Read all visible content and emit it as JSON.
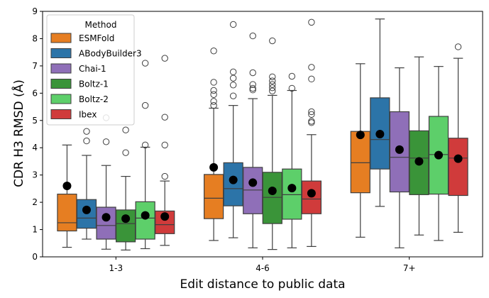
{
  "chart_data": {
    "type": "box",
    "xlabel": "Edit distance to public data",
    "ylabel": "CDR H3 RMSD (Å)",
    "ylim": [
      0,
      9
    ],
    "yticks": [
      "0",
      "1",
      "2",
      "3",
      "4",
      "5",
      "6",
      "7",
      "8",
      "9"
    ],
    "categories": [
      "1-3",
      "4-6",
      "7+"
    ],
    "legend": {
      "title": "Method",
      "placement": "upper-left"
    },
    "series": [
      {
        "name": "ESMFold",
        "color": "#e67e22",
        "boxes": [
          {
            "whislo": 0.35,
            "q1": 0.95,
            "med": 1.25,
            "q3": 2.3,
            "whishi": 4.1,
            "mean": 2.6,
            "fliers": []
          },
          {
            "whislo": 0.6,
            "q1": 1.4,
            "med": 2.15,
            "q3": 3.02,
            "whishi": 5.45,
            "mean": 3.28,
            "fliers": [
              5.55,
              5.7,
              5.95,
              6.1,
              6.4,
              7.55
            ]
          },
          {
            "whislo": 0.72,
            "q1": 2.35,
            "med": 3.45,
            "q3": 4.6,
            "whishi": 7.08,
            "mean": 4.47,
            "fliers": []
          }
        ]
      },
      {
        "name": "ABodyBuilder3",
        "color": "#2c74a8",
        "boxes": [
          {
            "whislo": 0.65,
            "q1": 1.05,
            "med": 1.42,
            "q3": 2.1,
            "whishi": 3.72,
            "mean": 1.72,
            "fliers": [
              4.25,
              4.6
            ]
          },
          {
            "whislo": 0.7,
            "q1": 1.87,
            "med": 2.5,
            "q3": 3.45,
            "whishi": 5.55,
            "mean": 2.82,
            "fliers": [
              5.9,
              6.3,
              6.55,
              6.78,
              8.52
            ]
          },
          {
            "whislo": 1.85,
            "q1": 3.22,
            "med": 4.3,
            "q3": 5.83,
            "whishi": 8.72,
            "mean": 4.5,
            "fliers": []
          }
        ]
      },
      {
        "name": "Chai-1",
        "color": "#8f6fb8",
        "boxes": [
          {
            "whislo": 0.28,
            "q1": 0.65,
            "med": 1.15,
            "q3": 1.82,
            "whishi": 3.35,
            "mean": 1.45,
            "fliers": [
              4.22,
              5.1
            ]
          },
          {
            "whislo": 0.33,
            "q1": 1.58,
            "med": 2.45,
            "q3": 3.28,
            "whishi": 5.8,
            "mean": 2.72,
            "fliers": [
              6.12,
              6.18,
              6.32,
              6.75,
              8.1
            ]
          },
          {
            "whislo": 0.33,
            "q1": 2.38,
            "med": 3.65,
            "q3": 5.32,
            "whishi": 6.93,
            "mean": 3.93,
            "fliers": []
          }
        ]
      },
      {
        "name": "Boltz-1",
        "color": "#3a9439",
        "boxes": [
          {
            "whislo": 0.25,
            "q1": 0.55,
            "med": 1.22,
            "q3": 1.72,
            "whishi": 2.95,
            "mean": 1.4,
            "fliers": [
              3.82,
              4.65
            ]
          },
          {
            "whislo": 0.27,
            "q1": 1.22,
            "med": 2.18,
            "q3": 3.1,
            "whishi": 5.92,
            "mean": 2.42,
            "fliers": [
              6.08,
              6.2,
              6.32,
              6.45,
              6.6,
              7.92
            ]
          },
          {
            "whislo": 0.8,
            "q1": 2.28,
            "med": 3.62,
            "q3": 4.62,
            "whishi": 7.33,
            "mean": 3.5,
            "fliers": []
          }
        ]
      },
      {
        "name": "Boltz-2",
        "color": "#5dcf6a",
        "boxes": [
          {
            "whislo": 0.3,
            "q1": 0.65,
            "med": 1.42,
            "q3": 2.02,
            "whishi": 4.02,
            "mean": 1.52,
            "fliers": [
              4.1,
              5.55,
              7.1
            ]
          },
          {
            "whislo": 0.33,
            "q1": 1.38,
            "med": 2.28,
            "q3": 3.22,
            "whishi": 6.1,
            "mean": 2.52,
            "fliers": [
              6.18,
              6.62
            ]
          },
          {
            "whislo": 0.6,
            "q1": 2.3,
            "med": 3.75,
            "q3": 5.15,
            "whishi": 6.98,
            "mean": 3.73,
            "fliers": []
          }
        ]
      },
      {
        "name": "Ibex",
        "color": "#d03b3b",
        "boxes": [
          {
            "whislo": 0.42,
            "q1": 0.85,
            "med": 1.18,
            "q3": 1.68,
            "whishi": 2.78,
            "mean": 1.48,
            "fliers": [
              2.95,
              4.1,
              5.12,
              7.28
            ]
          },
          {
            "whislo": 0.38,
            "q1": 1.58,
            "med": 2.12,
            "q3": 2.78,
            "whishi": 4.48,
            "mean": 2.33,
            "fliers": [
              4.92,
              4.97,
              5.22,
              5.32,
              6.52,
              6.95,
              8.6
            ]
          },
          {
            "whislo": 0.9,
            "q1": 2.25,
            "med": 3.62,
            "q3": 4.35,
            "whishi": 7.28,
            "mean": 3.6,
            "fliers": [
              7.7
            ]
          }
        ]
      }
    ]
  }
}
